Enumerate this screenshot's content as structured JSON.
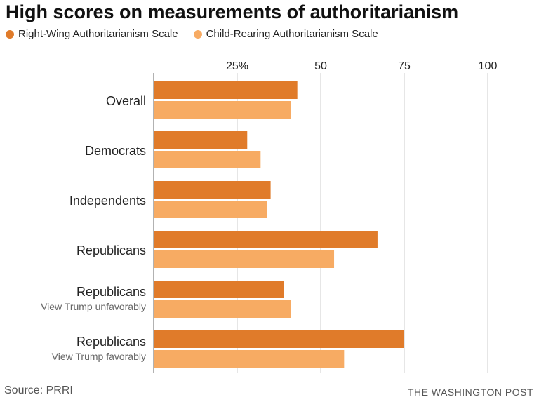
{
  "title": "High scores on measurements of authoritarianism",
  "source": "Source: PRRI",
  "credit": "THE WASHINGTON POST",
  "colors": {
    "series1": "#e07b2a",
    "series2": "#f7ab63",
    "grid": "#cccccc",
    "axis": "#999999"
  },
  "chart_data": {
    "type": "bar",
    "orientation": "horizontal",
    "title": "High scores on measurements of authoritarianism",
    "xlabel": "",
    "ylabel": "",
    "xlim": [
      0,
      100
    ],
    "ticks": [
      25,
      50,
      75,
      100
    ],
    "tick_labels": [
      "25%",
      "50",
      "75",
      "100"
    ],
    "legend_position": "top-left",
    "categories": [
      {
        "label": "Overall",
        "sub": ""
      },
      {
        "label": "Democrats",
        "sub": ""
      },
      {
        "label": "Independents",
        "sub": ""
      },
      {
        "label": "Republicans",
        "sub": ""
      },
      {
        "label": "Republicans",
        "sub": "View Trump unfavorably"
      },
      {
        "label": "Republicans",
        "sub": "View Trump favorably"
      }
    ],
    "series": [
      {
        "name": "Right-Wing Authoritarianism Scale",
        "values": [
          43,
          28,
          35,
          67,
          39,
          75
        ]
      },
      {
        "name": "Child-Rearing Authoritarianism Scale",
        "values": [
          41,
          32,
          34,
          54,
          41,
          57
        ]
      }
    ]
  }
}
